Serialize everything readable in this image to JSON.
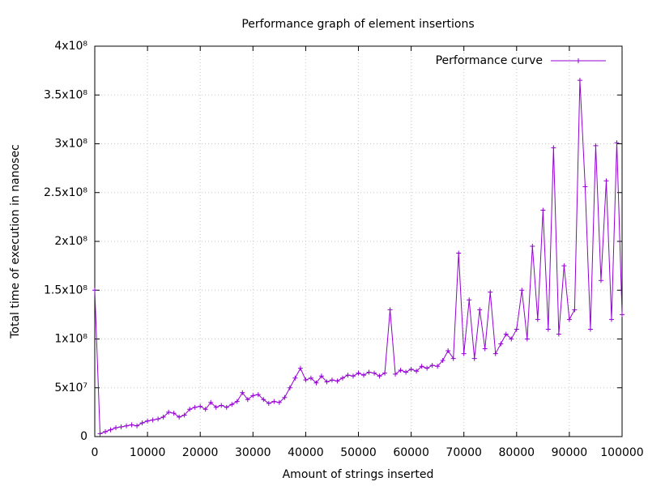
{
  "chart_data": {
    "type": "line",
    "title": "Performance graph of element insertions",
    "x_label": "Amount of strings inserted",
    "y_label": "Total time of execution in nanosec",
    "x": [
      0,
      1000,
      2000,
      3000,
      4000,
      5000,
      6000,
      7000,
      8000,
      9000,
      10000,
      11000,
      12000,
      13000,
      14000,
      15000,
      16000,
      17000,
      18000,
      19000,
      20000,
      21000,
      22000,
      23000,
      24000,
      25000,
      26000,
      27000,
      28000,
      29000,
      30000,
      31000,
      32000,
      33000,
      34000,
      35000,
      36000,
      37000,
      38000,
      39000,
      40000,
      41000,
      42000,
      43000,
      44000,
      45000,
      46000,
      47000,
      48000,
      49000,
      50000,
      51000,
      52000,
      53000,
      54000,
      55000,
      56000,
      57000,
      58000,
      59000,
      60000,
      61000,
      62000,
      63000,
      64000,
      65000,
      66000,
      67000,
      68000,
      69000,
      70000,
      71000,
      72000,
      73000,
      74000,
      75000,
      76000,
      77000,
      78000,
      79000,
      80000,
      81000,
      82000,
      83000,
      84000,
      85000,
      86000,
      87000,
      88000,
      89000,
      90000,
      91000,
      92000,
      93000,
      94000,
      95000,
      96000,
      97000,
      98000,
      99000,
      100000
    ],
    "series": [
      {
        "name": "Performance curve",
        "color": "#9400d3",
        "values": [
          150000000,
          3000000,
          5000000,
          7000000,
          9000000,
          10000000,
          11000000,
          12000000,
          11000000,
          14000000,
          16000000,
          17000000,
          18000000,
          20000000,
          25000000,
          24000000,
          20000000,
          22000000,
          28000000,
          30000000,
          31000000,
          28000000,
          35000000,
          30000000,
          32000000,
          30000000,
          33000000,
          36000000,
          45000000,
          38000000,
          42000000,
          43000000,
          38000000,
          34000000,
          36000000,
          35000000,
          40000000,
          50000000,
          60000000,
          70000000,
          58000000,
          60000000,
          55000000,
          62000000,
          56000000,
          58000000,
          57000000,
          60000000,
          63000000,
          62000000,
          65000000,
          63000000,
          66000000,
          65000000,
          62000000,
          65000000,
          130000000,
          64000000,
          68000000,
          66000000,
          69000000,
          67000000,
          72000000,
          70000000,
          73000000,
          72000000,
          78000000,
          88000000,
          80000000,
          188000000,
          85000000,
          140000000,
          80000000,
          130000000,
          90000000,
          148000000,
          85000000,
          95000000,
          105000000,
          100000000,
          110000000,
          150000000,
          100000000,
          195000000,
          120000000,
          232000000,
          110000000,
          296000000,
          105000000,
          175000000,
          120000000,
          130000000,
          365000000,
          256000000,
          110000000,
          298000000,
          160000000,
          262000000,
          120000000,
          301000000,
          125000000
        ]
      }
    ],
    "xlim": [
      0,
      100000
    ],
    "xticks": [
      0,
      10000,
      20000,
      30000,
      40000,
      50000,
      60000,
      70000,
      80000,
      90000,
      100000
    ],
    "ylim": [
      0,
      400000000
    ],
    "yticks": [
      0,
      {
        "value": 50000000,
        "label": "5x10⁷"
      },
      {
        "value": 100000000,
        "label": "1x10⁸"
      },
      {
        "value": 150000000,
        "label": "1.5x10⁸"
      },
      {
        "value": 200000000,
        "label": "2x10⁸"
      },
      {
        "value": 250000000,
        "label": "2.5x10⁸"
      },
      {
        "value": 300000000,
        "label": "3x10⁸"
      },
      {
        "value": 350000000,
        "label": "3.5x10⁸"
      },
      {
        "value": 400000000,
        "label": "4x10⁸"
      }
    ],
    "grid": true,
    "legend": "top-right"
  }
}
